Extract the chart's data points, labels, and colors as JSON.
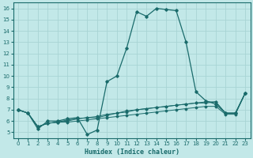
{
  "background_color": "#c2e8e8",
  "grid_color": "#a8d4d4",
  "line_color": "#1a6b6b",
  "xlabel": "Humidex (Indice chaleur)",
  "ylim": [
    4.5,
    16.5
  ],
  "xlim": [
    -0.5,
    23.5
  ],
  "yticks": [
    5,
    6,
    7,
    8,
    9,
    10,
    11,
    12,
    13,
    14,
    15,
    16
  ],
  "xticks": [
    0,
    1,
    2,
    3,
    4,
    5,
    6,
    7,
    8,
    9,
    10,
    11,
    12,
    13,
    14,
    15,
    16,
    17,
    18,
    19,
    20,
    21,
    22,
    23
  ],
  "line1_x": [
    0,
    1,
    2,
    3,
    4,
    5,
    6,
    7,
    8,
    9,
    10,
    11,
    12,
    13,
    14,
    15,
    16,
    17,
    18,
    19,
    20,
    21,
    22,
    23
  ],
  "line1_y": [
    7.0,
    6.7,
    5.3,
    6.0,
    6.0,
    6.2,
    6.3,
    4.8,
    5.2,
    9.5,
    10.0,
    12.5,
    15.7,
    15.3,
    16.0,
    15.9,
    15.8,
    13.0,
    8.6,
    7.8,
    7.5,
    6.7,
    6.7,
    8.5
  ],
  "line2_x": [
    0,
    1,
    2,
    3,
    4,
    5,
    6,
    7,
    8,
    9,
    10,
    11,
    12,
    13,
    14,
    15,
    16,
    17,
    18,
    19,
    20,
    21,
    22,
    23
  ],
  "line2_y": [
    7.0,
    6.7,
    5.5,
    5.8,
    5.9,
    6.1,
    6.2,
    6.3,
    6.3,
    6.5,
    6.7,
    6.8,
    7.0,
    7.1,
    7.2,
    7.3,
    7.4,
    7.5,
    7.6,
    7.7,
    7.7,
    6.7,
    6.7,
    8.5
  ],
  "line3_x": [
    0,
    1,
    2,
    3,
    4,
    5,
    6,
    7,
    8,
    9,
    10,
    11,
    12,
    13,
    14,
    15,
    16,
    17,
    18,
    19,
    20,
    21,
    22,
    23
  ],
  "line3_y": [
    7.0,
    6.7,
    5.5,
    5.8,
    5.9,
    6.0,
    6.2,
    6.3,
    6.4,
    6.6,
    6.7,
    6.9,
    7.0,
    7.1,
    7.2,
    7.3,
    7.4,
    7.5,
    7.6,
    7.6,
    7.7,
    6.7,
    6.7,
    8.5
  ],
  "line4_x": [
    0,
    1,
    2,
    3,
    4,
    5,
    6,
    7,
    8,
    9,
    10,
    11,
    12,
    13,
    14,
    15,
    16,
    17,
    18,
    19,
    20,
    21,
    22,
    23
  ],
  "line4_y": [
    7.0,
    6.7,
    5.5,
    5.8,
    5.9,
    5.9,
    6.0,
    6.1,
    6.2,
    6.3,
    6.4,
    6.5,
    6.6,
    6.7,
    6.8,
    6.9,
    7.0,
    7.1,
    7.2,
    7.3,
    7.3,
    6.6,
    6.6,
    8.5
  ]
}
